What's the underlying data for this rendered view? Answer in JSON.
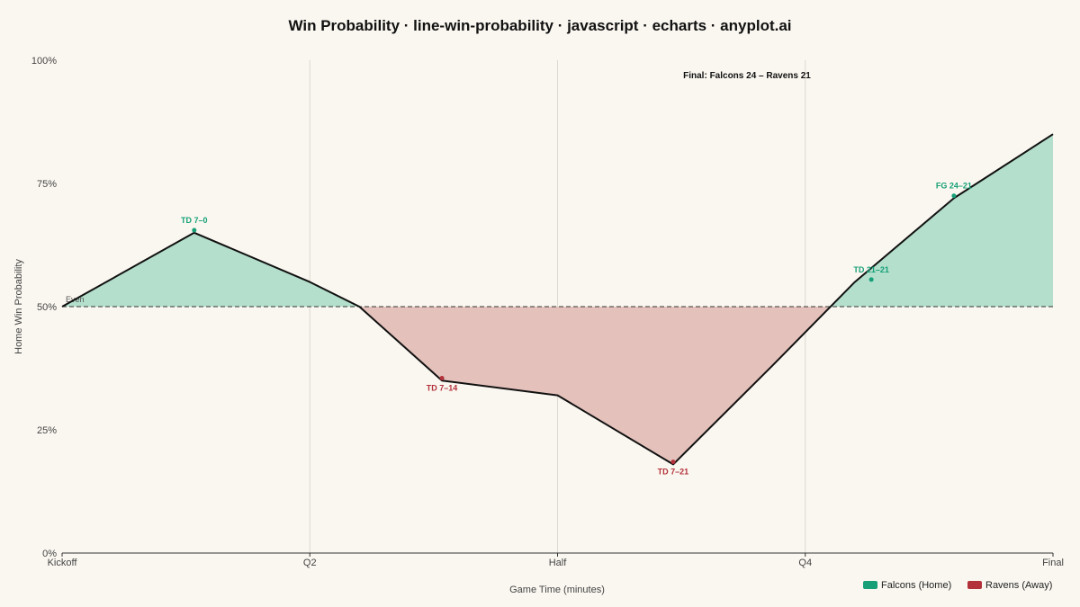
{
  "chart_data": {
    "type": "line",
    "title": "Win Probability · line-win-probability · javascript · echarts · anyplot.ai",
    "xlabel": "Game Time (minutes)",
    "ylabel": "Home Win Probability",
    "xlim": [
      0,
      60
    ],
    "ylim": [
      0,
      100
    ],
    "x_ticks": [
      {
        "value": 0,
        "label": "Kickoff"
      },
      {
        "value": 15,
        "label": "Q2"
      },
      {
        "value": 30,
        "label": "Half"
      },
      {
        "value": 45,
        "label": "Q4"
      },
      {
        "value": 60,
        "label": "Final"
      }
    ],
    "y_ticks": [
      {
        "value": 0,
        "label": "0%"
      },
      {
        "value": 25,
        "label": "25%"
      },
      {
        "value": 50,
        "label": "50%"
      },
      {
        "value": 75,
        "label": "75%"
      },
      {
        "value": 100,
        "label": "100%"
      }
    ],
    "grid": "vertical",
    "baseline": {
      "value": 50,
      "label": "Even"
    },
    "series": [
      {
        "name": "Home Win Probability",
        "color": "#111111",
        "x": [
          0,
          8,
          15,
          18,
          23,
          30,
          37,
          43,
          48,
          54,
          60
        ],
        "y": [
          50,
          65,
          55,
          50,
          35,
          32,
          18,
          38,
          55,
          72,
          85
        ]
      }
    ],
    "fill_above_color": "#b3dfcc",
    "fill_below_color": "#e4c1bb",
    "annotations": [
      {
        "x": 8,
        "y": 65.5,
        "text": "TD 7–0",
        "team": "home"
      },
      {
        "x": 23,
        "y": 35.5,
        "text": "TD 7–14",
        "team": "away"
      },
      {
        "x": 37,
        "y": 18.5,
        "text": "TD 7–21",
        "team": "away"
      },
      {
        "x": 49,
        "y": 55.5,
        "text": "TD 21–21",
        "team": "home"
      },
      {
        "x": 54,
        "y": 72.5,
        "text": "FG 24–21",
        "team": "home"
      }
    ],
    "final_text": "Final: Falcons 24 – Ravens 21",
    "legend": {
      "position": "bottom-right",
      "items": [
        {
          "label": "Falcons (Home)",
          "color": "#17a078"
        },
        {
          "label": "Ravens (Away)",
          "color": "#b3313a"
        }
      ]
    }
  }
}
